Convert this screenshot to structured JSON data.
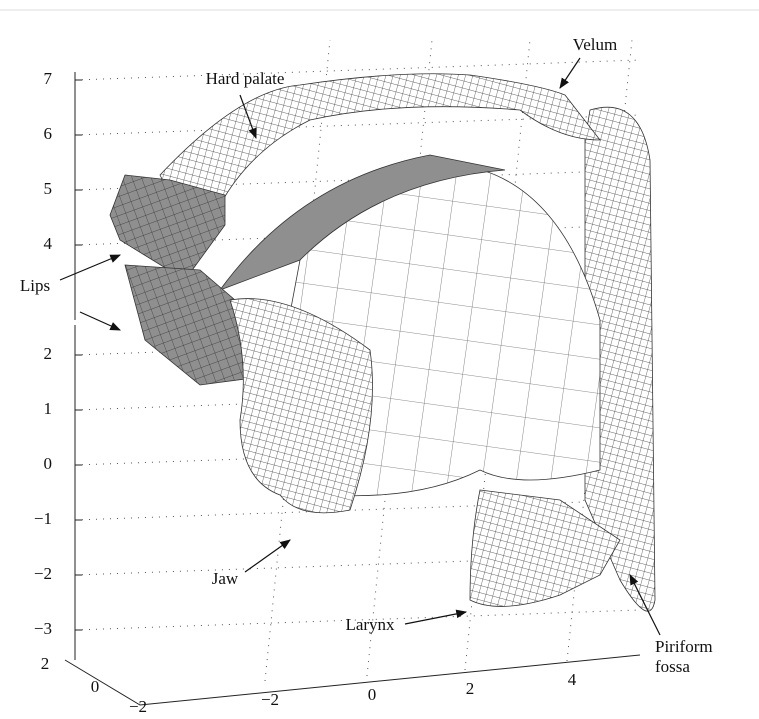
{
  "z_ticks_upper": [
    "4",
    "5",
    "6",
    "7"
  ],
  "z_ticks_lower": [
    "−3",
    "−2",
    "−1",
    "0",
    "1",
    "2"
  ],
  "y_ticks": [
    "2",
    "0",
    "−2"
  ],
  "x_ticks": [
    "−2",
    "0",
    "2",
    "4"
  ],
  "labels": {
    "hard_palate": "Hard palate",
    "velum": "Velum",
    "lips": "Lips",
    "jaw": "Jaw",
    "larynx": "Larynx",
    "piriform_fossa": [
      "Piriform",
      "fossa"
    ]
  }
}
